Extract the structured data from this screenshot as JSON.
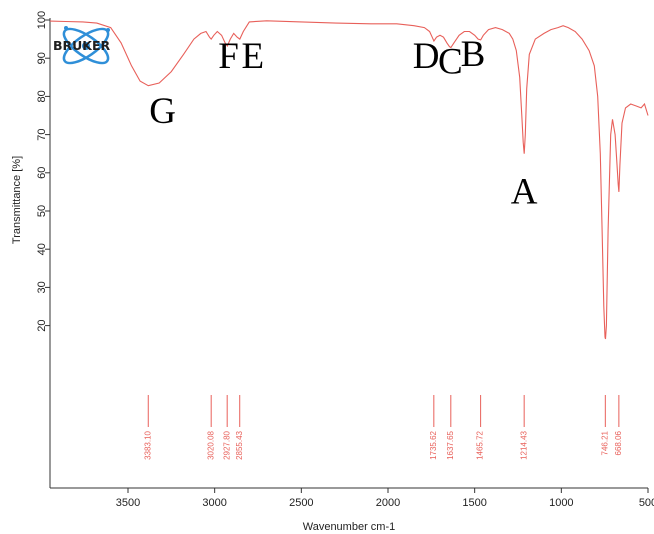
{
  "chart_data": {
    "type": "line",
    "xlabel": "Wavenumber cm-1",
    "ylabel": "Transmittance [%]",
    "xlim": [
      3950,
      500
    ],
    "ylim": [
      0,
      100
    ],
    "x_ticks": [
      3500,
      3000,
      2500,
      2000,
      1500,
      1000,
      500
    ],
    "y_ticks": [
      20,
      30,
      40,
      50,
      60,
      70,
      80,
      90,
      100
    ],
    "line_color": "#e8605a",
    "series": [
      {
        "x": [
          3950,
          3860,
          3760,
          3680,
          3600,
          3540,
          3480,
          3430,
          3383,
          3320,
          3250,
          3180,
          3120,
          3080,
          3050,
          3030,
          3020,
          3005,
          2985,
          2960,
          2940,
          2927,
          2910,
          2890,
          2870,
          2855,
          2835,
          2800,
          2700,
          2500,
          2300,
          2100,
          1950,
          1850,
          1790,
          1760,
          1745,
          1735,
          1720,
          1700,
          1680,
          1660,
          1645,
          1637,
          1620,
          1590,
          1560,
          1530,
          1500,
          1480,
          1465,
          1450,
          1420,
          1380,
          1340,
          1300,
          1280,
          1260,
          1240,
          1228,
          1220,
          1214,
          1208,
          1200,
          1185,
          1150,
          1100,
          1060,
          1020,
          990,
          960,
          920,
          880,
          840,
          810,
          790,
          775,
          765,
          755,
          748,
          745,
          740,
          730,
          715,
          705,
          690,
          680,
          672,
          668,
          662,
          650,
          630,
          600,
          570,
          540,
          520,
          500
        ],
        "y": [
          99.7,
          99.6,
          99.5,
          99.2,
          98.0,
          94.0,
          88.0,
          84.0,
          82.8,
          83.5,
          86.5,
          91.0,
          95.0,
          96.5,
          97.0,
          95.5,
          95.0,
          96.0,
          97.0,
          96.0,
          94.0,
          93.2,
          95.0,
          96.5,
          95.5,
          95.0,
          97.0,
          99.5,
          99.8,
          99.5,
          99.2,
          99.0,
          99.0,
          98.5,
          98.0,
          97.0,
          95.5,
          94.5,
          95.5,
          96.0,
          95.5,
          94.0,
          93.0,
          92.8,
          94.0,
          96.0,
          97.0,
          97.0,
          96.0,
          95.0,
          94.8,
          96.0,
          97.5,
          98.0,
          97.5,
          96.5,
          95.0,
          92.0,
          85.0,
          75.0,
          68.0,
          65.0,
          70.0,
          82.0,
          91.0,
          95.0,
          96.5,
          97.5,
          98.0,
          98.5,
          98.0,
          97.0,
          95.0,
          92.0,
          88.0,
          80.0,
          65.0,
          45.0,
          25.0,
          17.0,
          16.5,
          20.0,
          45.0,
          70.0,
          74.0,
          70.0,
          63.0,
          57.0,
          55.0,
          62.0,
          73.0,
          77.0,
          78.0,
          77.5,
          77.0,
          78.0,
          75.0
        ]
      }
    ],
    "peaks": [
      {
        "x": 3383.1,
        "label": "3383.10"
      },
      {
        "x": 3020.08,
        "label": "3020.08"
      },
      {
        "x": 2927.8,
        "label": "2927.80"
      },
      {
        "x": 2855.43,
        "label": "2855.43"
      },
      {
        "x": 1735.62,
        "label": "1735.62"
      },
      {
        "x": 1637.65,
        "label": "1637.65"
      },
      {
        "x": 1465.72,
        "label": "1465.72"
      },
      {
        "x": 1214.43,
        "label": "1214.43"
      },
      {
        "x": 746.21,
        "label": "746.21"
      },
      {
        "x": 668.06,
        "label": "668.06"
      }
    ],
    "annotations": [
      {
        "text": "G",
        "x": 3300,
        "y": 73
      },
      {
        "text": "F",
        "x": 2920,
        "y": 87.5
      },
      {
        "text": "E",
        "x": 2780,
        "y": 87.5
      },
      {
        "text": "D",
        "x": 1780,
        "y": 87.5
      },
      {
        "text": "C",
        "x": 1640,
        "y": 86
      },
      {
        "text": "B",
        "x": 1510,
        "y": 88
      },
      {
        "text": "A",
        "x": 1215,
        "y": 52
      }
    ],
    "logo": {
      "text": "BRUKER"
    }
  }
}
